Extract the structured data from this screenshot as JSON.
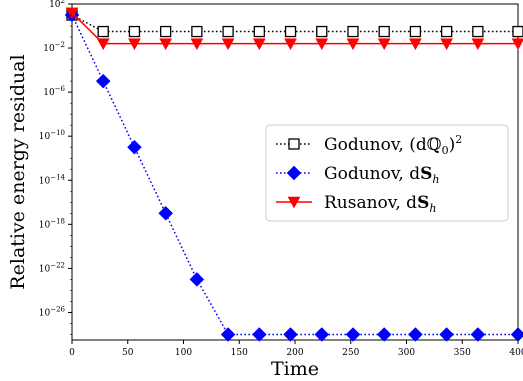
{
  "chart_data": {
    "type": "line",
    "xlabel": "Time",
    "ylabel": "Relative energy residual",
    "xlim": [
      0,
      400
    ],
    "ylim_log10": [
      -28.5,
      2
    ],
    "y_scale": "log",
    "x_ticks": [
      "0",
      "50",
      "100",
      "150",
      "200",
      "250",
      "300",
      "350",
      "400"
    ],
    "y_ticks": [
      {
        "exp": 2,
        "label": "10",
        "sup": "2"
      },
      {
        "exp": -2,
        "label": "10",
        "sup": "−2"
      },
      {
        "exp": -6,
        "label": "10",
        "sup": "−6"
      },
      {
        "exp": -10,
        "label": "10",
        "sup": "−10"
      },
      {
        "exp": -14,
        "label": "10",
        "sup": "−14"
      },
      {
        "exp": -18,
        "label": "10",
        "sup": "−18"
      },
      {
        "exp": -22,
        "label": "10",
        "sup": "−22"
      },
      {
        "exp": -26,
        "label": "10",
        "sup": "−26"
      }
    ],
    "legend_position": "center-right",
    "series": [
      {
        "name": "Godunov, (dℚ₀)²",
        "legend_parts": {
          "text": "Godunov, (dℚ",
          "sub": "0",
          "tail": ")",
          "sup": "2"
        },
        "color": "#000000",
        "line": "dotted",
        "marker": "square-open",
        "x": [
          0,
          28,
          56,
          84,
          112,
          140,
          168,
          196,
          224,
          252,
          280,
          308,
          336,
          364,
          400
        ],
        "log10_y": [
          1,
          -0.5,
          -0.5,
          -0.5,
          -0.5,
          -0.5,
          -0.5,
          -0.5,
          -0.5,
          -0.5,
          -0.5,
          -0.5,
          -0.5,
          -0.5,
          -0.5
        ]
      },
      {
        "name": "Godunov, dSₕ",
        "legend_parts": {
          "text": "Godunov, d",
          "bold": "S",
          "sub": "h"
        },
        "color": "#0000ff",
        "line": "dotted",
        "marker": "diamond",
        "x": [
          0,
          28,
          56,
          84,
          112,
          140,
          168,
          196,
          224,
          252,
          280,
          308,
          336,
          364,
          400
        ],
        "log10_y": [
          1,
          -5,
          -11,
          -17,
          -23,
          -28,
          -28,
          -28,
          -28,
          -28,
          -28,
          -28,
          -28,
          -28,
          -28
        ]
      },
      {
        "name": "Rusanov, dSₕ",
        "legend_parts": {
          "text": "Rusanov, d",
          "bold": "S",
          "sub": "h"
        },
        "color": "#ff0000",
        "line": "solid",
        "marker": "triangle-down",
        "x": [
          0,
          28,
          56,
          84,
          112,
          140,
          168,
          196,
          224,
          252,
          280,
          308,
          336,
          364,
          400
        ],
        "log10_y": [
          1.2,
          -1.6,
          -1.6,
          -1.6,
          -1.6,
          -1.6,
          -1.6,
          -1.6,
          -1.6,
          -1.6,
          -1.6,
          -1.6,
          -1.6,
          -1.6,
          -1.6
        ]
      }
    ]
  }
}
